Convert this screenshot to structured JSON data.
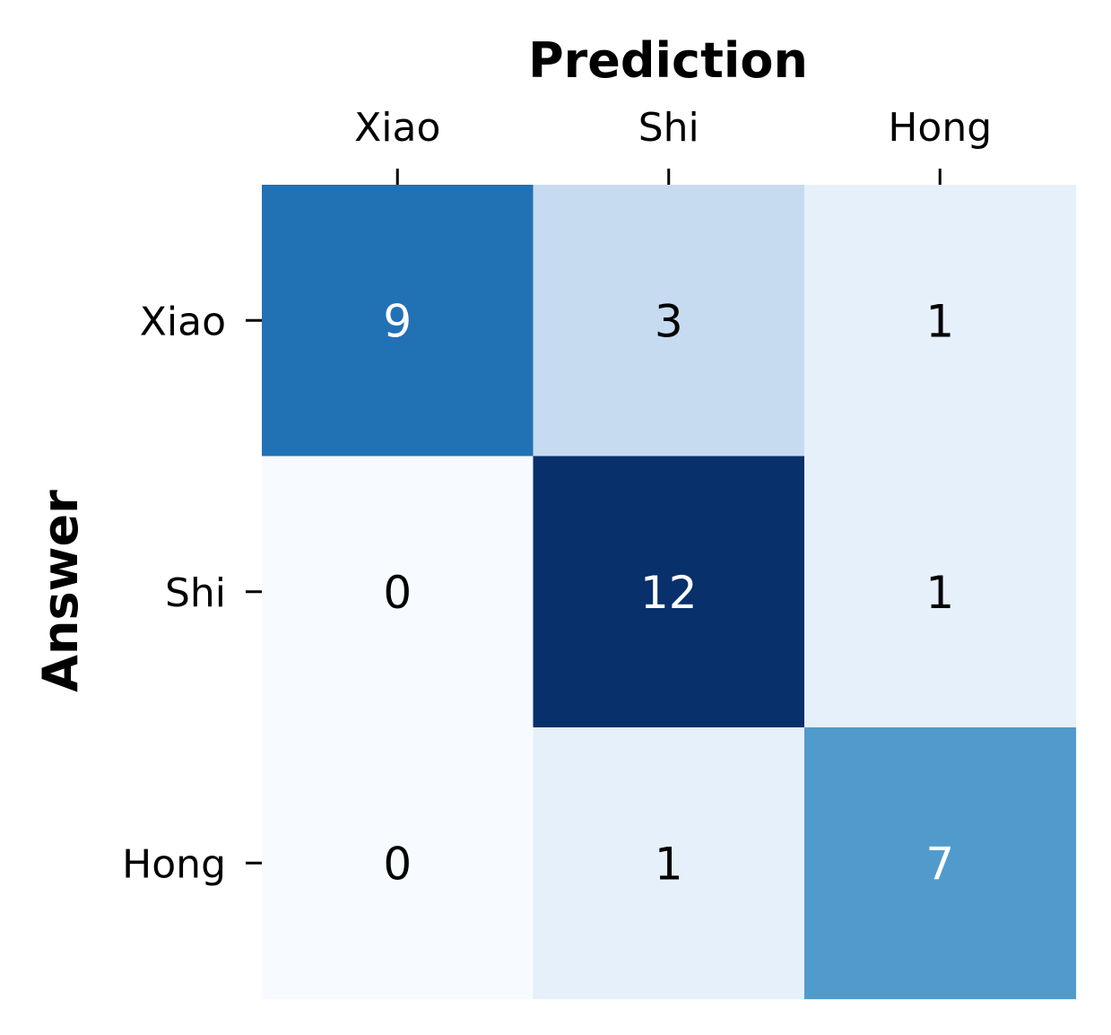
{
  "chart_data": {
    "type": "heatmap",
    "title": "",
    "xlabel": "Prediction",
    "ylabel": "Answer",
    "x_categories": [
      "Xiao",
      "Shi",
      "Hong"
    ],
    "y_categories": [
      "Xiao",
      "Shi",
      "Hong"
    ],
    "values": [
      [
        9,
        3,
        1
      ],
      [
        0,
        12,
        1
      ],
      [
        0,
        1,
        7
      ]
    ],
    "x_axis_position": "top",
    "colormap": "Blues",
    "value_range": [
      0,
      12
    ],
    "colorbar": false,
    "grid": false
  }
}
